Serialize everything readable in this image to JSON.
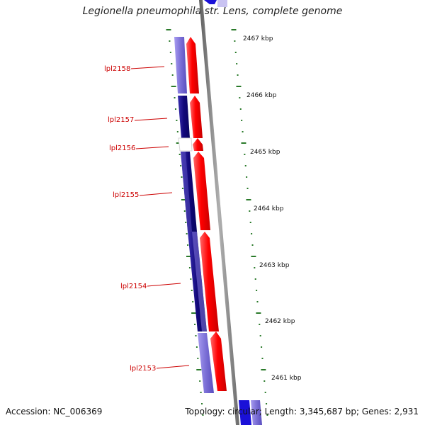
{
  "title": "Legionella pneumophila str. Lens, complete genome",
  "footer": {
    "accession": "Accession: NC_006369",
    "topology": "Topology: circular; Length: 3,345,687 bp; Genes: 2,931"
  },
  "gene_labels": [
    "lpl2158",
    "lpl2157",
    "lpl2156",
    "lpl2155",
    "lpl2154",
    "lpl2153"
  ],
  "kbp_labels": [
    "2467 kbp",
    "2466 kbp",
    "2465 kbp",
    "2464 kbp",
    "2463 kbp",
    "2462 kbp",
    "2461 kbp"
  ],
  "colors": {
    "forward_strand": "#ff0000",
    "reverse_strand_light": "#7b6fd6",
    "reverse_strand_dark": "#1a0f8c",
    "backbone": "#8a8a8a",
    "tick": "#2a7a2a",
    "gene_label": "#cc0000"
  }
}
